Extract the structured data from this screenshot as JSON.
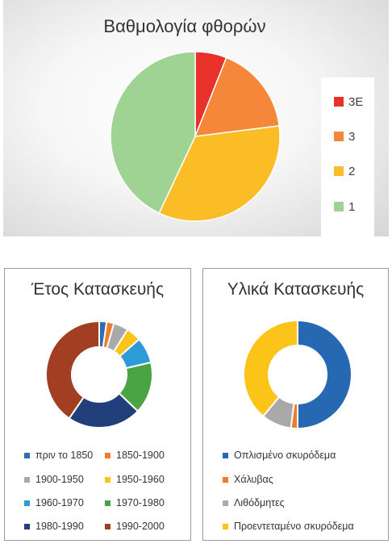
{
  "chart_data": [
    {
      "type": "pie",
      "title": "Βαθμολογία φθορών",
      "categories": [
        "3Ε",
        "3",
        "2",
        "1"
      ],
      "values": [
        6,
        17,
        34,
        43
      ],
      "colors": [
        "#e8312a",
        "#f4873a",
        "#fbbd26",
        "#9fd393"
      ],
      "legend_position": "right"
    },
    {
      "type": "pie",
      "donut": true,
      "title": "Έτος Κατασκευής",
      "categories": [
        "πριν το 1850",
        "1850-1900",
        "1900-1950",
        "1950-1960",
        "1960-1970",
        "1970-1980",
        "1980-1990",
        "1990-2000"
      ],
      "values": [
        2,
        2,
        4,
        4,
        7,
        14,
        20,
        36
      ],
      "colors": [
        "#2e6db4",
        "#ef7b2b",
        "#a9a9a9",
        "#fcc419",
        "#2c9bd6",
        "#4aa444",
        "#213f7b",
        "#a23e22"
      ],
      "legend_position": "bottom"
    },
    {
      "type": "pie",
      "donut": true,
      "title": "Υλικά Κατασκευής",
      "categories": [
        "Οπλισμένο σκυρόδεμα",
        "Χάλυβας",
        "Λιθόδμητες",
        "Προεντεταμένο σκυρόδεμα"
      ],
      "values": [
        50,
        2,
        9,
        39
      ],
      "colors": [
        "#2768b3",
        "#ef7b2b",
        "#a9a9a9",
        "#fcc419"
      ],
      "legend_position": "bottom"
    }
  ]
}
